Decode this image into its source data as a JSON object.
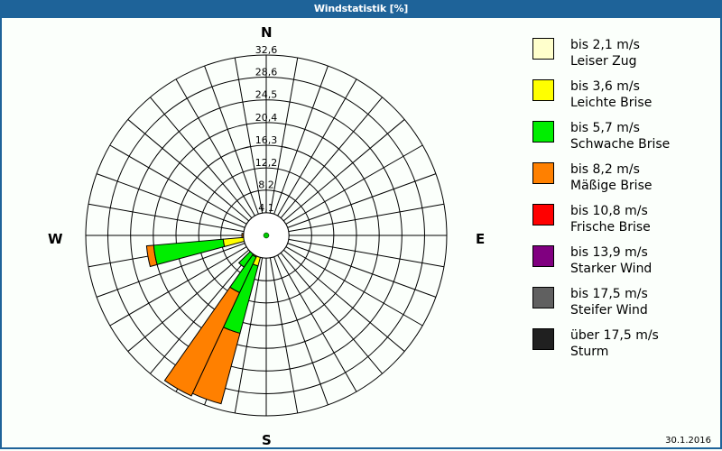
{
  "title": "Windstatistik [%]",
  "date": "30.1.2016",
  "compass": {
    "n": "N",
    "e": "E",
    "s": "S",
    "w": "W"
  },
  "legend": [
    {
      "speed": "bis 2,1 m/s",
      "name": "Leiser Zug",
      "color": "#ffffcc"
    },
    {
      "speed": "bis 3,6 m/s",
      "name": "Leichte Brise",
      "color": "#ffff00"
    },
    {
      "speed": "bis 5,7 m/s",
      "name": "Schwache Brise",
      "color": "#00ee00"
    },
    {
      "speed": "bis 8,2 m/s",
      "name": "Mäßige Brise",
      "color": "#ff8000"
    },
    {
      "speed": "bis 10,8 m/s",
      "name": "Frische Brise",
      "color": "#ff0000"
    },
    {
      "speed": "bis 13,9 m/s",
      "name": "Starker Wind",
      "color": "#800080"
    },
    {
      "speed": "bis 17,5 m/s",
      "name": "Steifer Wind",
      "color": "#606060"
    },
    {
      "speed": "über 17,5 m/s",
      "name": "Sturm",
      "color": "#202020"
    }
  ],
  "chart_data": {
    "type": "polar-stacked-bar (wind rose)",
    "title": "Windstatistik [%]",
    "radial_unit": "%",
    "radial_ticks": [
      4.1,
      8.2,
      12.2,
      16.3,
      20.4,
      24.5,
      28.6,
      32.6
    ],
    "radial_max": 32.6,
    "sector_width_deg": 10,
    "direction_count": 36,
    "grid": true,
    "legend_position": "right",
    "series": [
      "bis 2,1 m/s",
      "bis 3,6 m/s",
      "bis 5,7 m/s",
      "bis 8,2 m/s",
      "bis 10,8 m/s",
      "bis 13,9 m/s",
      "bis 17,5 m/s",
      "über 17,5 m/s"
    ],
    "sectors": [
      {
        "direction_deg": 200,
        "cumulative": [
          0.0,
          5.7,
          18.3,
          31.5,
          31.5,
          31.5,
          31.5,
          31.5
        ]
      },
      {
        "direction_deg": 210,
        "cumulative": [
          0.0,
          4.3,
          11.4,
          32.0,
          32.0,
          32.0,
          32.0,
          32.0
        ]
      },
      {
        "direction_deg": 220,
        "cumulative": [
          0.0,
          0.5,
          7.0,
          7.0,
          7.0,
          7.0,
          7.0,
          7.0
        ]
      },
      {
        "direction_deg": 230,
        "cumulative": [
          0.0,
          0.3,
          4.0,
          4.0,
          4.0,
          4.0,
          4.0,
          4.0
        ]
      },
      {
        "direction_deg": 250,
        "cumulative": [
          0.0,
          0.3,
          3.5,
          3.5,
          3.5,
          3.5,
          3.5,
          3.5
        ]
      },
      {
        "direction_deg": 260,
        "cumulative": [
          0.0,
          7.8,
          20.4,
          21.7,
          21.7,
          21.7,
          21.7,
          21.7
        ]
      },
      {
        "direction_deg": 270,
        "cumulative": [
          0.0,
          0.5,
          3.6,
          4.4,
          4.4,
          4.4,
          4.4,
          4.4
        ]
      },
      {
        "direction_deg": 280,
        "cumulative": [
          0.0,
          0.3,
          2.0,
          2.6,
          2.6,
          2.6,
          2.6,
          2.6
        ]
      },
      {
        "direction_deg": 290,
        "cumulative": [
          0.0,
          0.2,
          1.0,
          1.0,
          1.0,
          1.0,
          1.0,
          1.5
        ]
      },
      {
        "direction_deg": 300,
        "cumulative": [
          0.0,
          0.2,
          0.8,
          0.8,
          0.8,
          0.8,
          0.8,
          1.2
        ]
      }
    ],
    "xlabel": "",
    "ylabel": ""
  }
}
